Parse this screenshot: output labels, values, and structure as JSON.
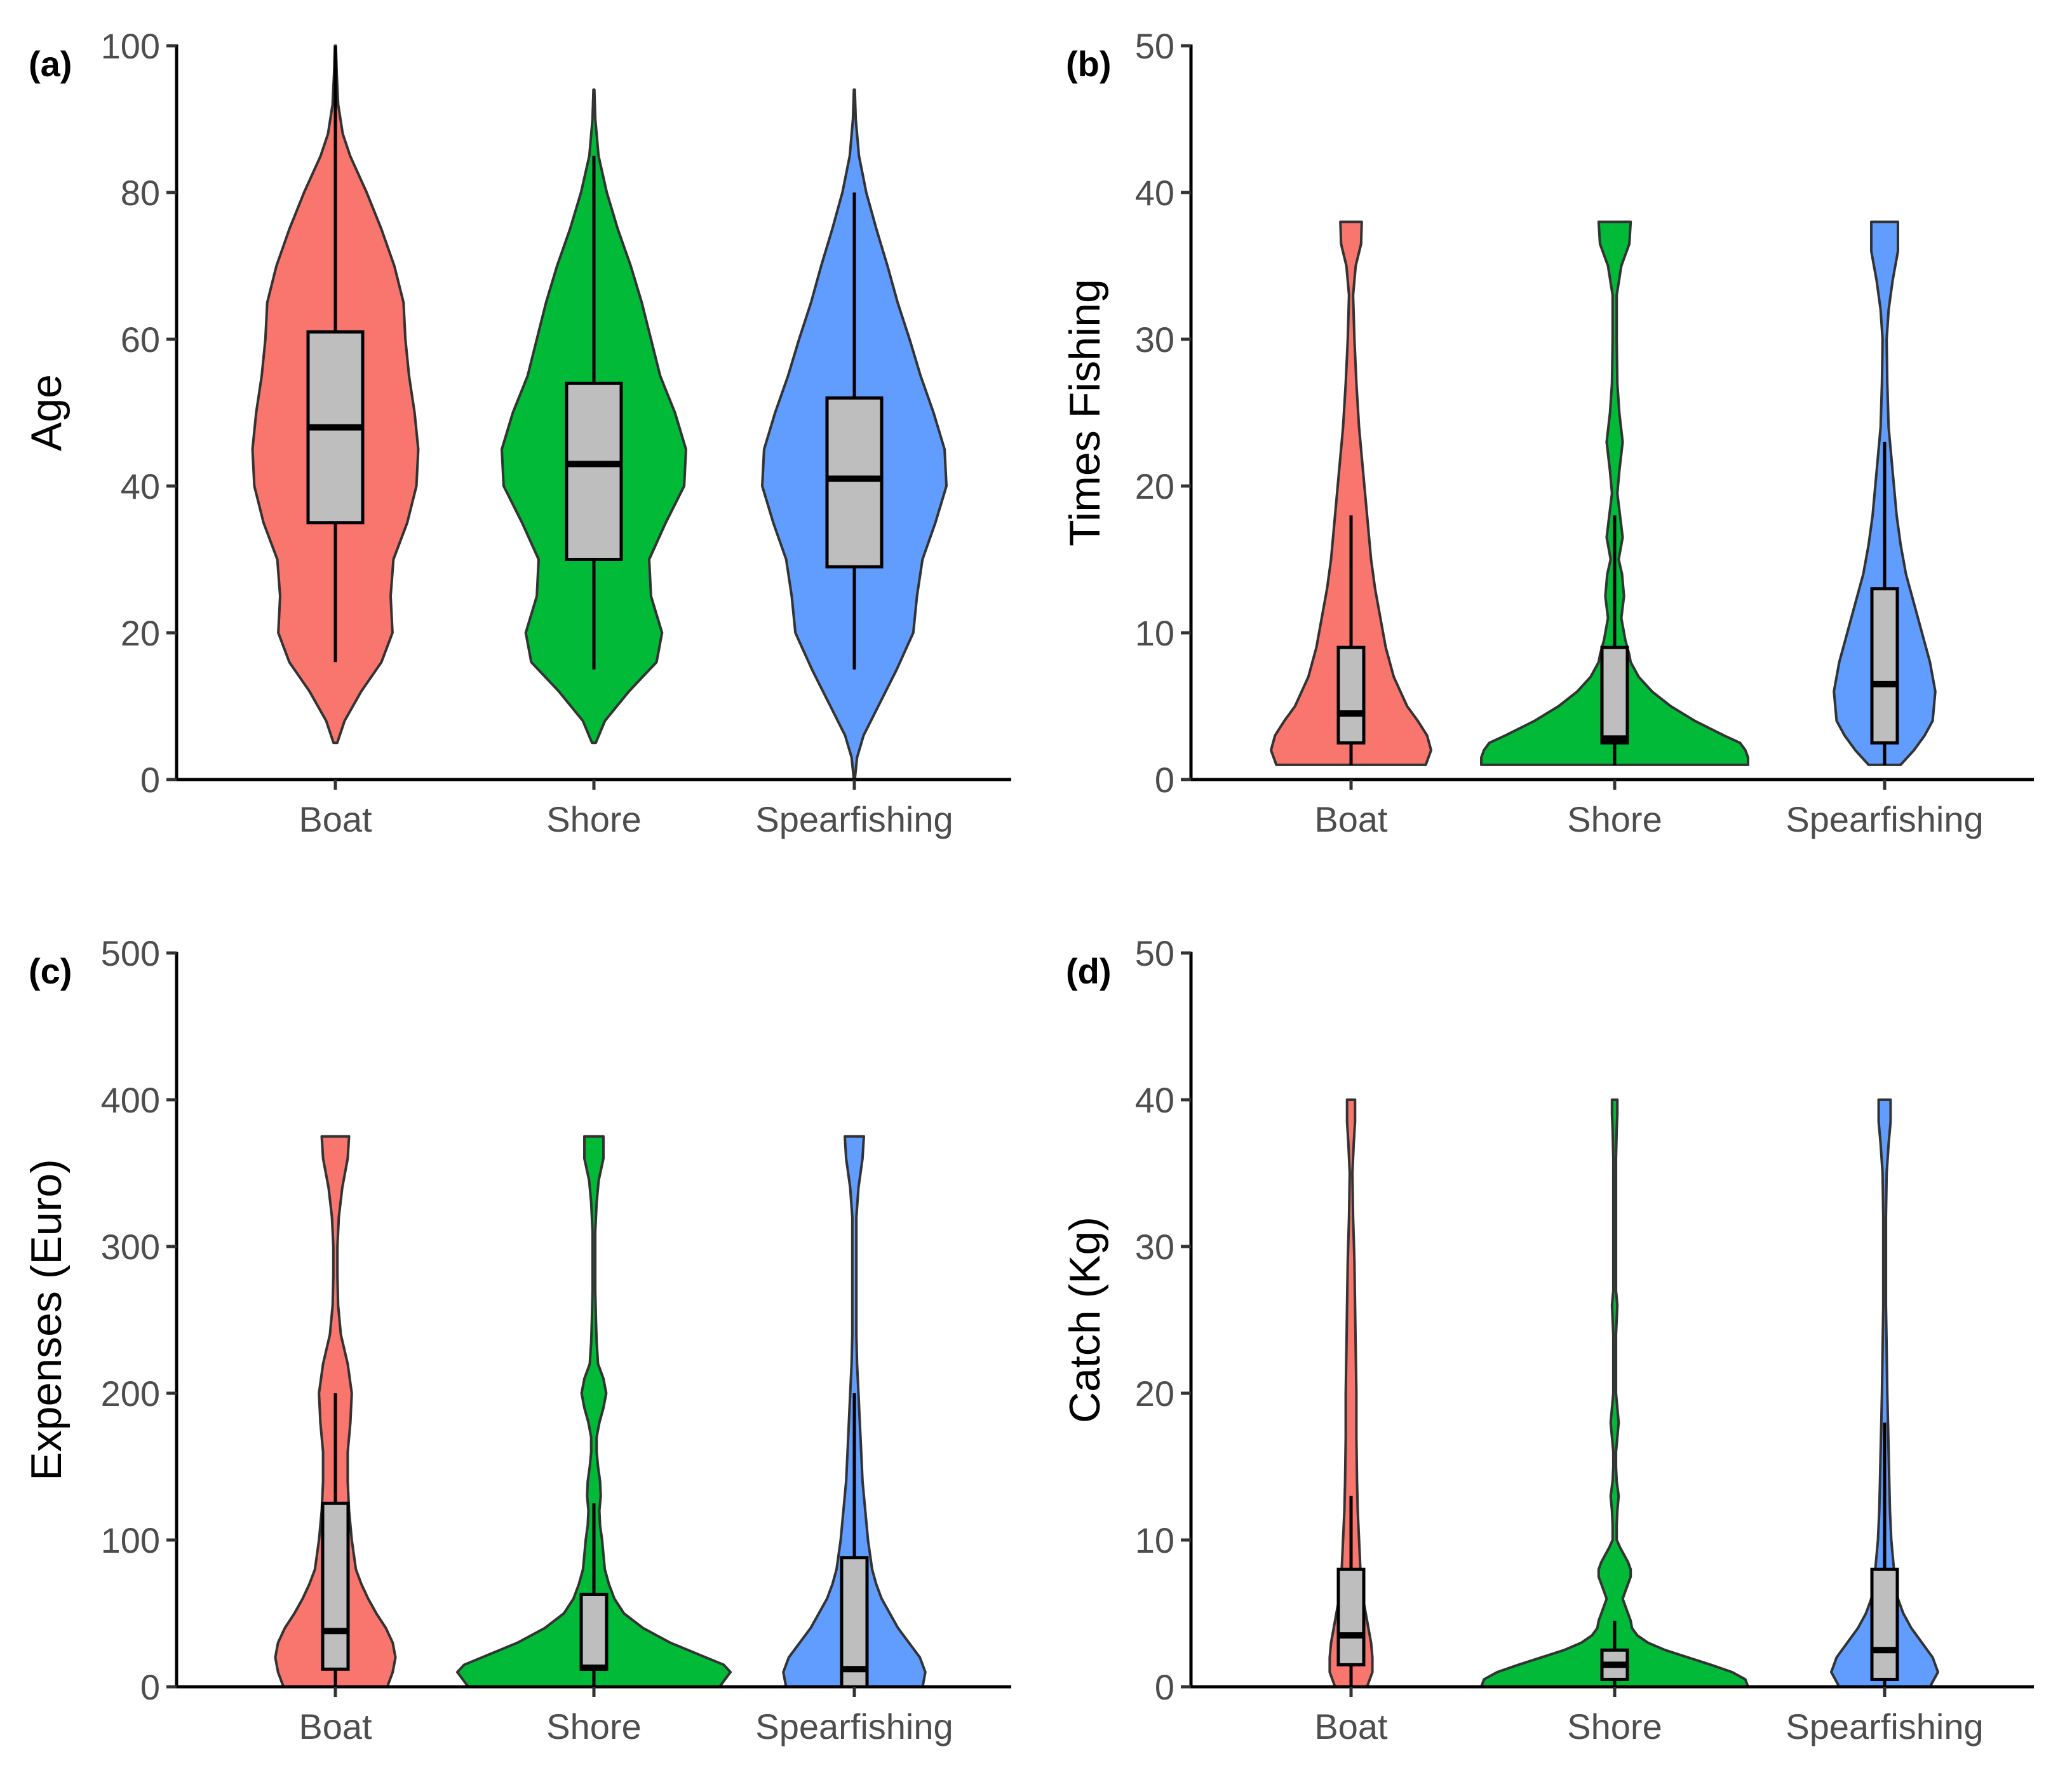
{
  "figure": {
    "colors": {
      "Boat": "#F8766D",
      "Shore": "#00BA38",
      "Spearfishing": "#619CFF",
      "box_fill": "#BEBEBE",
      "outline": "#333333"
    }
  },
  "chart_data": [
    {
      "panel": "(a)",
      "type": "violin",
      "ylabel": "Age",
      "ylim": [
        0,
        100
      ],
      "yticks": [
        0,
        20,
        40,
        60,
        80,
        100
      ],
      "categories": [
        "Boat",
        "Shore",
        "Spearfishing"
      ],
      "box": [
        {
          "category": "Boat",
          "whisker_low": 16,
          "q1": 35,
          "median": 48,
          "q3": 61,
          "whisker_high": 100
        },
        {
          "category": "Shore",
          "whisker_low": 15,
          "q1": 30,
          "median": 43,
          "q3": 54,
          "whisker_high": 85
        },
        {
          "category": "Spearfishing",
          "whisker_low": 15,
          "q1": 29,
          "median": 41,
          "q3": 52,
          "whisker_high": 80
        }
      ],
      "density": [
        {
          "category": "Boat",
          "y": [
            5,
            8,
            12,
            16,
            20,
            25,
            30,
            35,
            40,
            45,
            50,
            55,
            60,
            65,
            70,
            75,
            80,
            85,
            88,
            92,
            96,
            100
          ],
          "halfwidth": [
            0.02,
            0.1,
            0.28,
            0.5,
            0.62,
            0.6,
            0.63,
            0.78,
            0.88,
            0.9,
            0.86,
            0.8,
            0.76,
            0.74,
            0.64,
            0.5,
            0.34,
            0.16,
            0.08,
            0.03,
            0.015,
            0.005
          ]
        },
        {
          "category": "Shore",
          "y": [
            5,
            8,
            12,
            16,
            20,
            25,
            30,
            35,
            40,
            45,
            50,
            55,
            60,
            65,
            70,
            75,
            80,
            85,
            90,
            94
          ],
          "halfwidth": [
            0.02,
            0.12,
            0.38,
            0.68,
            0.74,
            0.62,
            0.6,
            0.78,
            0.98,
            1.0,
            0.88,
            0.72,
            0.62,
            0.52,
            0.4,
            0.26,
            0.14,
            0.05,
            0.015,
            0.005
          ]
        },
        {
          "category": "Spearfishing",
          "y": [
            0,
            3,
            6,
            10,
            15,
            20,
            25,
            30,
            35,
            40,
            45,
            50,
            55,
            60,
            65,
            70,
            75,
            80,
            85,
            90,
            94
          ],
          "halfwidth": [
            0.005,
            0.03,
            0.1,
            0.26,
            0.46,
            0.64,
            0.68,
            0.74,
            0.88,
            1.0,
            0.98,
            0.86,
            0.72,
            0.6,
            0.47,
            0.36,
            0.24,
            0.13,
            0.05,
            0.015,
            0.005
          ]
        }
      ]
    },
    {
      "panel": "(b)",
      "type": "violin",
      "ylabel": "Times Fishing",
      "ylim": [
        0,
        50
      ],
      "yticks": [
        0,
        10,
        20,
        30,
        40,
        50
      ],
      "categories": [
        "Boat",
        "Shore",
        "Spearfishing"
      ],
      "box": [
        {
          "category": "Boat",
          "whisker_low": 1,
          "q1": 2.5,
          "median": 4.5,
          "q3": 9,
          "whisker_high": 18
        },
        {
          "category": "Shore",
          "whisker_low": 1,
          "q1": 2.5,
          "median": 2.8,
          "q3": 9,
          "whisker_high": 18
        },
        {
          "category": "Spearfishing",
          "whisker_low": 1,
          "q1": 2.5,
          "median": 6.5,
          "q3": 13,
          "whisker_high": 23
        }
      ],
      "density": [
        {
          "category": "Boat",
          "y": [
            1,
            2,
            3,
            4,
            5,
            7,
            9,
            11,
            13,
            15,
            17,
            19,
            21,
            24,
            27,
            30,
            33,
            35,
            36.5,
            38
          ],
          "halfwidth": [
            0.56,
            0.6,
            0.57,
            0.5,
            0.42,
            0.32,
            0.26,
            0.22,
            0.18,
            0.15,
            0.13,
            0.11,
            0.09,
            0.06,
            0.04,
            0.025,
            0.015,
            0.035,
            0.075,
            0.08
          ]
        },
        {
          "category": "Shore",
          "y": [
            1,
            1.5,
            2,
            2.5,
            3,
            4,
            5,
            6,
            7,
            8,
            8.5,
            9.5,
            11,
            12.5,
            14,
            15,
            16.5,
            18,
            19.5,
            21,
            23,
            25,
            27,
            30,
            33,
            35,
            36.5,
            38
          ],
          "halfwidth": [
            1.0,
            1.0,
            0.98,
            0.94,
            0.82,
            0.6,
            0.42,
            0.28,
            0.18,
            0.12,
            0.11,
            0.08,
            0.05,
            0.07,
            0.055,
            0.03,
            0.06,
            0.04,
            0.02,
            0.035,
            0.06,
            0.035,
            0.02,
            0.015,
            0.015,
            0.05,
            0.11,
            0.12
          ]
        },
        {
          "category": "Spearfishing",
          "y": [
            1,
            2,
            3,
            4,
            6,
            8,
            10,
            12,
            14,
            16,
            18,
            20,
            22,
            24,
            27,
            30,
            32,
            34,
            36,
            38
          ],
          "halfwidth": [
            0.12,
            0.22,
            0.3,
            0.36,
            0.38,
            0.34,
            0.28,
            0.22,
            0.16,
            0.12,
            0.09,
            0.07,
            0.05,
            0.03,
            0.02,
            0.015,
            0.03,
            0.06,
            0.1,
            0.1
          ]
        }
      ]
    },
    {
      "panel": "(c)",
      "type": "violin",
      "ylabel": "Expenses (Euro)",
      "ylim": [
        0,
        500
      ],
      "yticks": [
        0,
        100,
        200,
        300,
        400,
        500
      ],
      "categories": [
        "Boat",
        "Shore",
        "Spearfishing"
      ],
      "box": [
        {
          "category": "Boat",
          "whisker_low": 0,
          "q1": 12,
          "median": 38,
          "q3": 125,
          "whisker_high": 200
        },
        {
          "category": "Shore",
          "whisker_low": 0,
          "q1": 12,
          "median": 13,
          "q3": 63,
          "whisker_high": 125
        },
        {
          "category": "Spearfishing",
          "whisker_low": 0,
          "q1": 0,
          "median": 12,
          "q3": 88,
          "whisker_high": 200
        }
      ],
      "density": [
        {
          "category": "Boat",
          "y": [
            0,
            10,
            20,
            30,
            40,
            50,
            60,
            70,
            80,
            100,
            120,
            140,
            160,
            180,
            200,
            220,
            240,
            260,
            280,
            300,
            320,
            340,
            360,
            375
          ],
          "halfwidth": [
            0.38,
            0.42,
            0.44,
            0.42,
            0.37,
            0.3,
            0.24,
            0.19,
            0.15,
            0.12,
            0.1,
            0.09,
            0.09,
            0.11,
            0.12,
            0.09,
            0.04,
            0.02,
            0.015,
            0.015,
            0.025,
            0.05,
            0.09,
            0.1
          ]
        },
        {
          "category": "Shore",
          "y": [
            0,
            5,
            10,
            15,
            20,
            30,
            40,
            50,
            60,
            70,
            80,
            90,
            100,
            110,
            120,
            130,
            140,
            150,
            160,
            170,
            180,
            190,
            200,
            210,
            220,
            235,
            250,
            270,
            290,
            310,
            330,
            345,
            360,
            375
          ],
          "halfwidth": [
            0.92,
            0.96,
            1.0,
            0.95,
            0.82,
            0.56,
            0.36,
            0.22,
            0.15,
            0.11,
            0.08,
            0.07,
            0.06,
            0.045,
            0.04,
            0.05,
            0.045,
            0.03,
            0.02,
            0.02,
            0.04,
            0.07,
            0.09,
            0.07,
            0.03,
            0.02,
            0.015,
            0.01,
            0.01,
            0.01,
            0.02,
            0.035,
            0.07,
            0.07
          ]
        },
        {
          "category": "Spearfishing",
          "y": [
            0,
            10,
            20,
            30,
            40,
            50,
            60,
            70,
            80,
            100,
            120,
            140,
            160,
            180,
            200,
            220,
            240,
            260,
            280,
            300,
            320,
            340,
            360,
            375
          ],
          "halfwidth": [
            0.5,
            0.52,
            0.48,
            0.4,
            0.32,
            0.26,
            0.2,
            0.16,
            0.13,
            0.1,
            0.08,
            0.06,
            0.05,
            0.04,
            0.03,
            0.02,
            0.015,
            0.015,
            0.015,
            0.015,
            0.015,
            0.03,
            0.06,
            0.07
          ]
        }
      ]
    },
    {
      "panel": "(d)",
      "type": "violin",
      "ylabel": "Catch (Kg)",
      "ylim": [
        0,
        50
      ],
      "yticks": [
        0,
        10,
        20,
        30,
        40,
        50
      ],
      "categories": [
        "Boat",
        "Shore",
        "Spearfishing"
      ],
      "box": [
        {
          "category": "Boat",
          "whisker_low": 0,
          "q1": 1.5,
          "median": 3.5,
          "q3": 8,
          "whisker_high": 13
        },
        {
          "category": "Shore",
          "whisker_low": 0,
          "q1": 0.5,
          "median": 1.5,
          "q3": 2.5,
          "whisker_high": 4.5
        },
        {
          "category": "Spearfishing",
          "whisker_low": 0,
          "q1": 0.5,
          "median": 2.5,
          "q3": 8,
          "whisker_high": 18
        }
      ],
      "density": [
        {
          "category": "Boat",
          "y": [
            0,
            1,
            2,
            3,
            4,
            5,
            6,
            8,
            10,
            12,
            14,
            17,
            20,
            23,
            26,
            29,
            32,
            35,
            37,
            38.5,
            40
          ],
          "halfwidth": [
            0.12,
            0.16,
            0.16,
            0.15,
            0.13,
            0.11,
            0.09,
            0.07,
            0.06,
            0.05,
            0.045,
            0.04,
            0.04,
            0.035,
            0.03,
            0.025,
            0.015,
            0.01,
            0.02,
            0.03,
            0.03
          ]
        },
        {
          "category": "Shore",
          "y": [
            0,
            0.5,
            1,
            1.5,
            2,
            2.5,
            3,
            3.5,
            4,
            4.5,
            5,
            5.5,
            6,
            6.5,
            7,
            7.5,
            8,
            8.5,
            9,
            9.5,
            10,
            11,
            12,
            13,
            14,
            15,
            16,
            17,
            18,
            19,
            20,
            22,
            24,
            26,
            27,
            28,
            30,
            32,
            34,
            36,
            38,
            39,
            40
          ],
          "halfwidth": [
            1.0,
            0.98,
            0.88,
            0.72,
            0.55,
            0.38,
            0.25,
            0.17,
            0.13,
            0.12,
            0.1,
            0.08,
            0.06,
            0.08,
            0.1,
            0.12,
            0.12,
            0.1,
            0.07,
            0.04,
            0.015,
            0.015,
            0.02,
            0.03,
            0.015,
            0.01,
            0.01,
            0.02,
            0.03,
            0.02,
            0.01,
            0.01,
            0.01,
            0.02,
            0.01,
            0.01,
            0.01,
            0.01,
            0.01,
            0.01,
            0.015,
            0.02,
            0.02
          ]
        },
        {
          "category": "Spearfishing",
          "y": [
            0,
            1,
            2,
            3,
            4,
            5,
            6,
            8,
            10,
            12,
            14,
            16,
            18,
            20,
            23,
            26,
            29,
            32,
            35,
            37,
            38.5,
            40
          ],
          "halfwidth": [
            0.34,
            0.4,
            0.36,
            0.28,
            0.2,
            0.14,
            0.1,
            0.07,
            0.05,
            0.04,
            0.035,
            0.03,
            0.025,
            0.02,
            0.015,
            0.01,
            0.01,
            0.01,
            0.015,
            0.03,
            0.045,
            0.045
          ]
        }
      ]
    }
  ]
}
